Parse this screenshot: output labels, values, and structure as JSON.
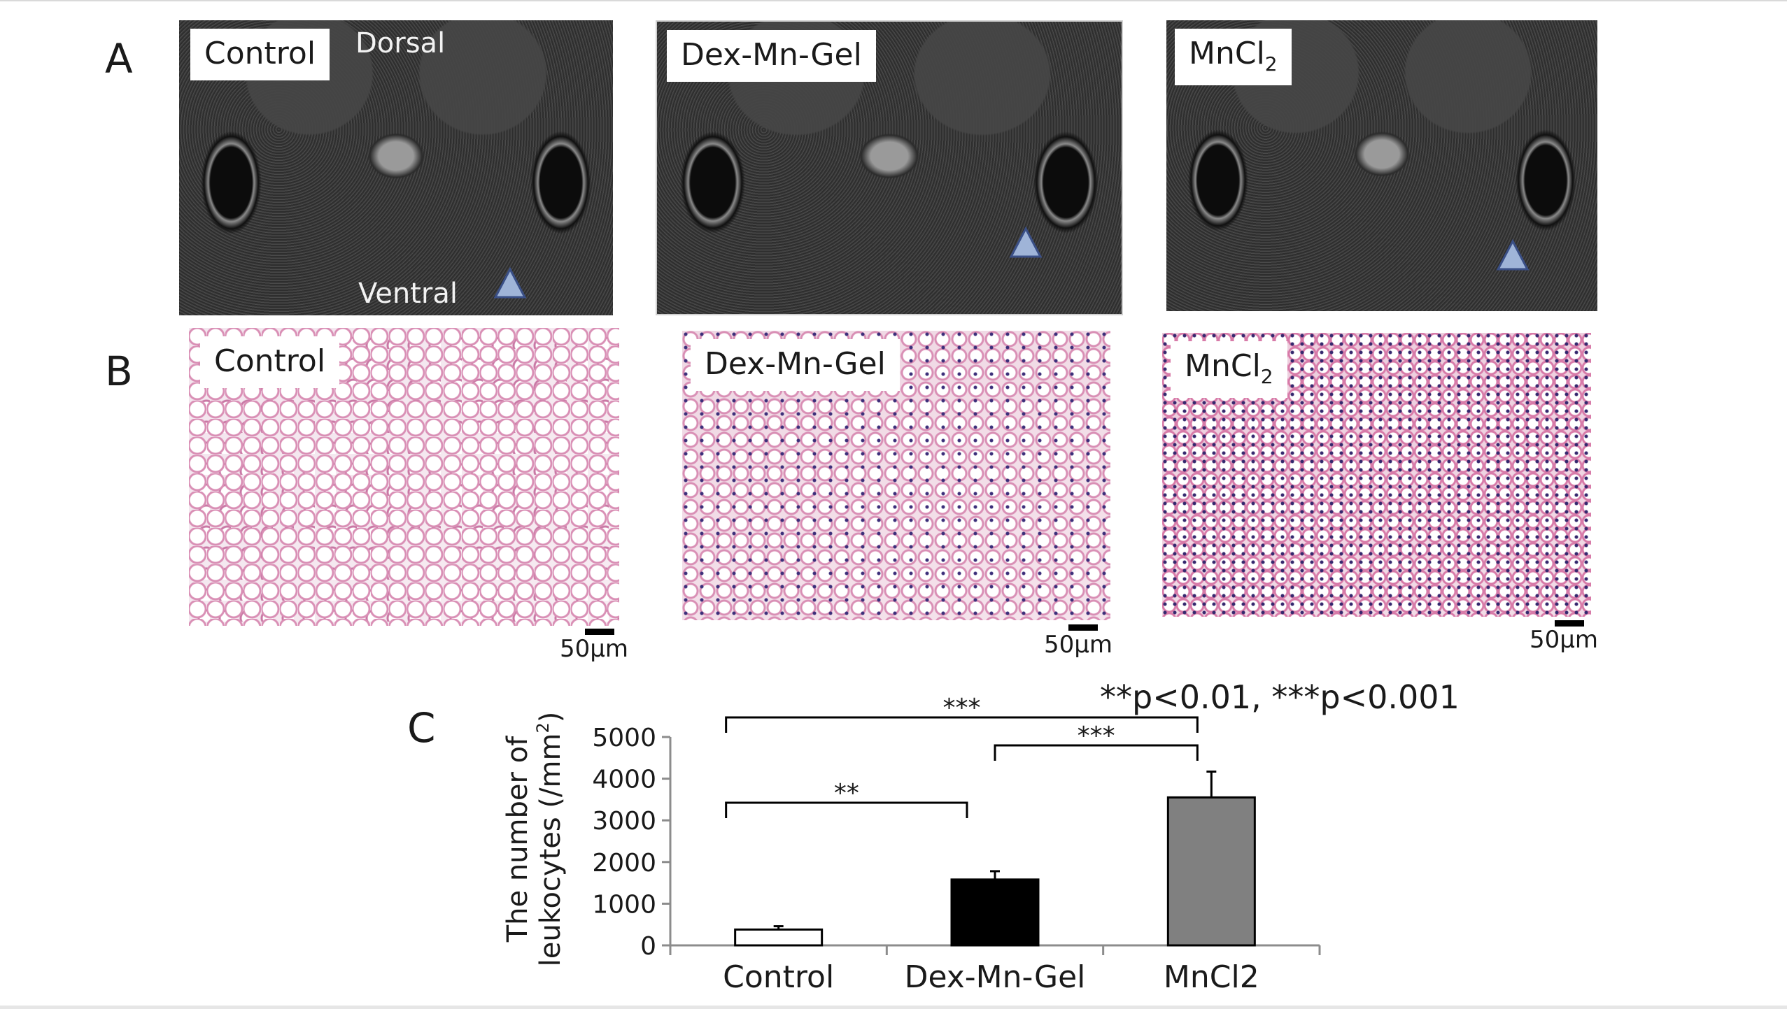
{
  "panels": {
    "a": {
      "letter": "A",
      "images": [
        {
          "label": "Control",
          "orientation_top": "Dorsal",
          "orientation_bottom": "Ventral"
        },
        {
          "label": "Dex-Mn-Gel"
        },
        {
          "label_main": "MnCl",
          "label_sub": "2"
        }
      ],
      "marker_color": "#9fb4d8"
    },
    "b": {
      "letter": "B",
      "images": [
        {
          "label": "Control",
          "scale": "50μm"
        },
        {
          "label": "Dex-Mn-Gel",
          "scale": "50μm"
        },
        {
          "label_main": "MnCl",
          "label_sub": "2",
          "scale": "50μm"
        }
      ]
    },
    "c": {
      "letter": "C",
      "significance_note": "**p<0.01, ***p<0.001"
    }
  },
  "chart_data": {
    "type": "bar",
    "categories": [
      "Control",
      "Dex-Mn-Gel",
      "MnCl2"
    ],
    "values": [
      380,
      1580,
      3550
    ],
    "errors": [
      80,
      200,
      620
    ],
    "bar_colors": [
      "#ffffff",
      "#000000",
      "#808080"
    ],
    "ylabel_line1": "The number of",
    "ylabel_line2_main": "leukocytes (/mm",
    "ylabel_line2_sup": "2",
    "ylabel_line2_end": ")",
    "ylim": [
      0,
      5000
    ],
    "yticks": [
      0,
      1000,
      2000,
      3000,
      4000,
      5000
    ],
    "comparisons": [
      {
        "from": 0,
        "to": 2,
        "label": "***"
      },
      {
        "from": 1,
        "to": 2,
        "label": "***"
      },
      {
        "from": 0,
        "to": 1,
        "label": "**"
      }
    ]
  }
}
